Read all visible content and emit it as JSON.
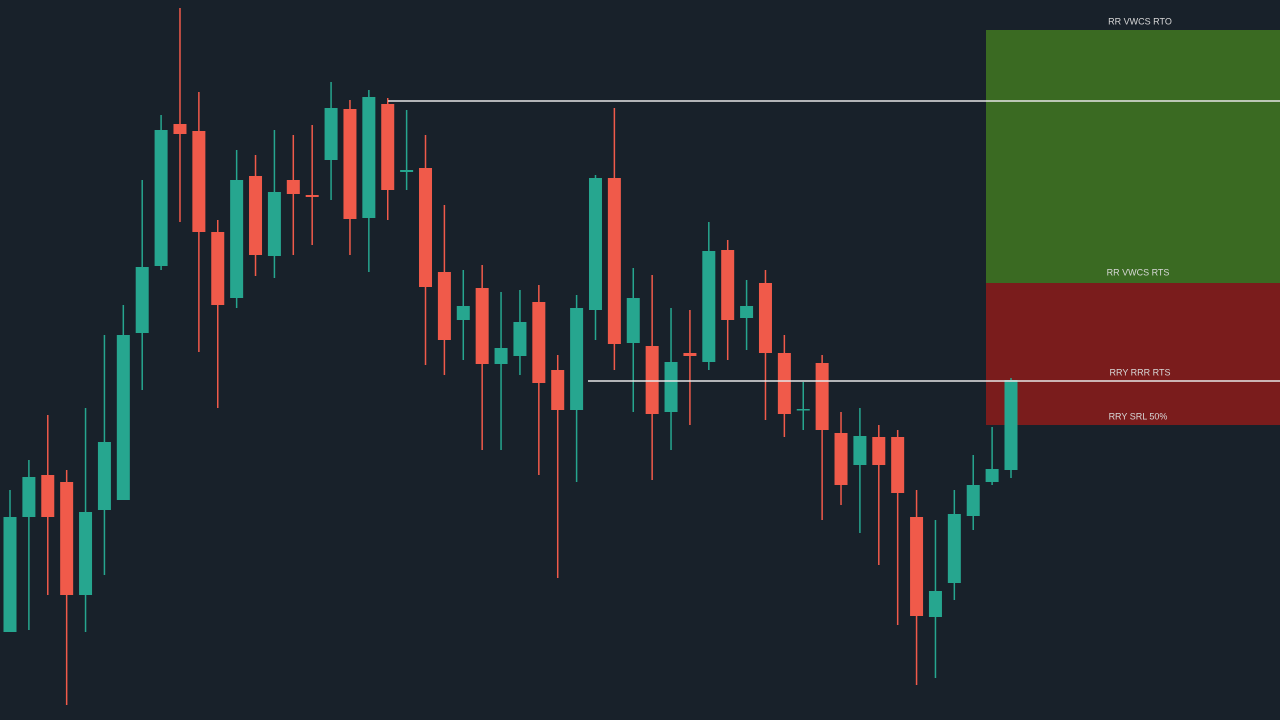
{
  "chart_data": {
    "type": "candlestick",
    "open": [
      88,
      203,
      245,
      238,
      125,
      210,
      220,
      387,
      454,
      596,
      589,
      488,
      422,
      544,
      464,
      540,
      525,
      560,
      611,
      502,
      616,
      548,
      552,
      448,
      400,
      432,
      356,
      364,
      418,
      350,
      310,
      410,
      542,
      377,
      374,
      308,
      367,
      358,
      470,
      402,
      437,
      367,
      310,
      357,
      287,
      255,
      283,
      283,
      203,
      103,
      137,
      204,
      238,
      250
    ],
    "high": [
      230,
      260,
      305,
      250,
      312,
      385,
      415,
      540,
      605,
      712,
      628,
      500,
      570,
      565,
      590,
      585,
      595,
      638,
      620,
      630,
      622,
      610,
      585,
      515,
      450,
      455,
      428,
      430,
      435,
      365,
      425,
      545,
      612,
      452,
      445,
      412,
      410,
      498,
      480,
      440,
      450,
      385,
      338,
      365,
      308,
      312,
      295,
      290,
      230,
      200,
      230,
      265,
      293,
      342
    ],
    "low": [
      88,
      90,
      125,
      15,
      88,
      145,
      220,
      330,
      450,
      498,
      368,
      312,
      412,
      444,
      442,
      465,
      475,
      520,
      465,
      448,
      500,
      530,
      355,
      345,
      360,
      270,
      270,
      345,
      245,
      142,
      238,
      380,
      350,
      308,
      240,
      270,
      295,
      350,
      360,
      370,
      300,
      283,
      290,
      200,
      215,
      187,
      155,
      95,
      35,
      42,
      120,
      190,
      235,
      242
    ],
    "close": [
      203,
      243,
      203,
      125,
      208,
      278,
      385,
      453,
      590,
      586,
      488,
      415,
      540,
      465,
      528,
      526,
      523,
      612,
      501,
      623,
      530,
      550,
      433,
      380,
      414,
      356,
      372,
      398,
      337,
      310,
      412,
      542,
      376,
      422,
      306,
      358,
      364,
      469,
      400,
      414,
      367,
      306,
      311,
      290,
      235,
      284,
      255,
      227,
      104,
      129,
      206,
      235,
      251,
      340
    ],
    "up_color": "#26a68f",
    "down_color": "#f05a4a",
    "ylim": [
      0,
      720
    ],
    "levels": [
      619,
      339
    ],
    "level_color": "#e6e6e6",
    "zones": [
      {
        "from": 437,
        "to": 690,
        "color": "#3a6a22"
      },
      {
        "from": 295,
        "to": 437,
        "color": "#7a1c1c"
      }
    ],
    "annotations": [
      "RR VWCS RTO",
      "RR VWCS RTS",
      "RRY RRR RTS",
      "RRY SRL 50%"
    ]
  }
}
